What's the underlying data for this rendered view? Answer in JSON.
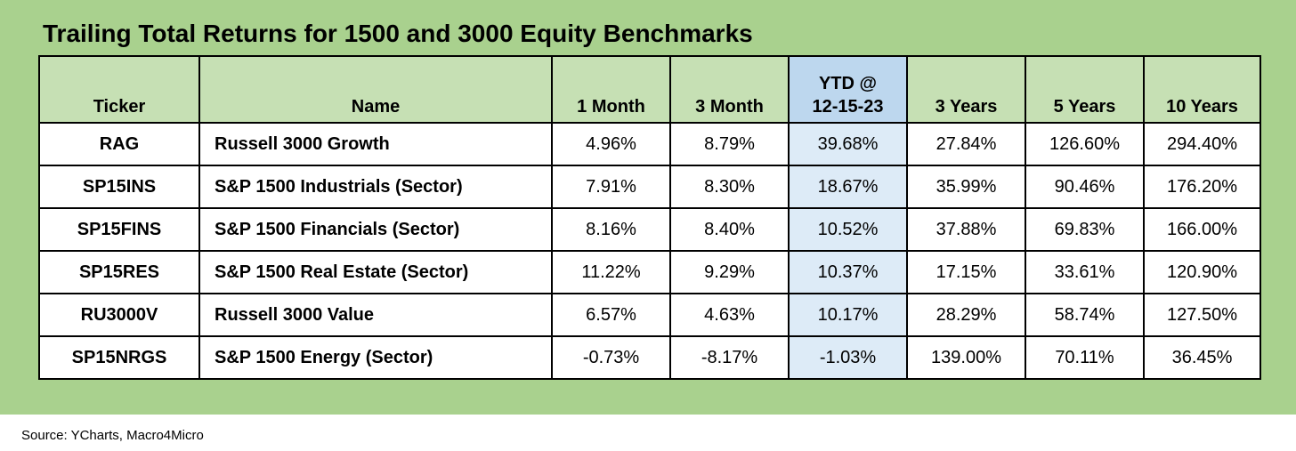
{
  "title": "Trailing Total Returns for 1500 and 3000 Equity Benchmarks",
  "source": "Source: YCharts, Macro4Micro",
  "colors": {
    "background": "#a9d18e",
    "header": "#c6e0b4",
    "ytd_header": "#bdd7ee",
    "ytd_cell": "#ddebf7"
  },
  "chart_data": {
    "type": "table",
    "columns": [
      "Ticker",
      "Name",
      "1 Month",
      "3 Month",
      "YTD @ 12-15-23",
      "3 Years",
      "5 Years",
      "10 Years"
    ],
    "header": {
      "ticker": "Ticker",
      "name": "Name",
      "m1": "1 Month",
      "m3": "3 Month",
      "ytd_line1": "YTD @",
      "ytd_line2": "12-15-23",
      "y3": "3 Years",
      "y5": "5 Years",
      "y10": "10 Years"
    },
    "rows": [
      {
        "ticker": "RAG",
        "name": "Russell 3000 Growth",
        "m1": "4.96%",
        "m3": "8.79%",
        "ytd": "39.68%",
        "y3": "27.84%",
        "y5": "126.60%",
        "y10": "294.40%"
      },
      {
        "ticker": "SP15INS",
        "name": "S&P 1500 Industrials (Sector)",
        "m1": "7.91%",
        "m3": "8.30%",
        "ytd": "18.67%",
        "y3": "35.99%",
        "y5": "90.46%",
        "y10": "176.20%"
      },
      {
        "ticker": "SP15FINS",
        "name": "S&P 1500 Financials (Sector)",
        "m1": "8.16%",
        "m3": "8.40%",
        "ytd": "10.52%",
        "y3": "37.88%",
        "y5": "69.83%",
        "y10": "166.00%"
      },
      {
        "ticker": "SP15RES",
        "name": "S&P 1500 Real Estate (Sector)",
        "m1": "11.22%",
        "m3": "9.29%",
        "ytd": "10.37%",
        "y3": "17.15%",
        "y5": "33.61%",
        "y10": "120.90%"
      },
      {
        "ticker": "RU3000V",
        "name": "Russell 3000 Value",
        "m1": "6.57%",
        "m3": "4.63%",
        "ytd": "10.17%",
        "y3": "28.29%",
        "y5": "58.74%",
        "y10": "127.50%"
      },
      {
        "ticker": "SP15NRGS",
        "name": "S&P 1500 Energy (Sector)",
        "m1": "-0.73%",
        "m3": "-8.17%",
        "ytd": "-1.03%",
        "y3": "139.00%",
        "y5": "70.11%",
        "y10": "36.45%"
      }
    ]
  }
}
